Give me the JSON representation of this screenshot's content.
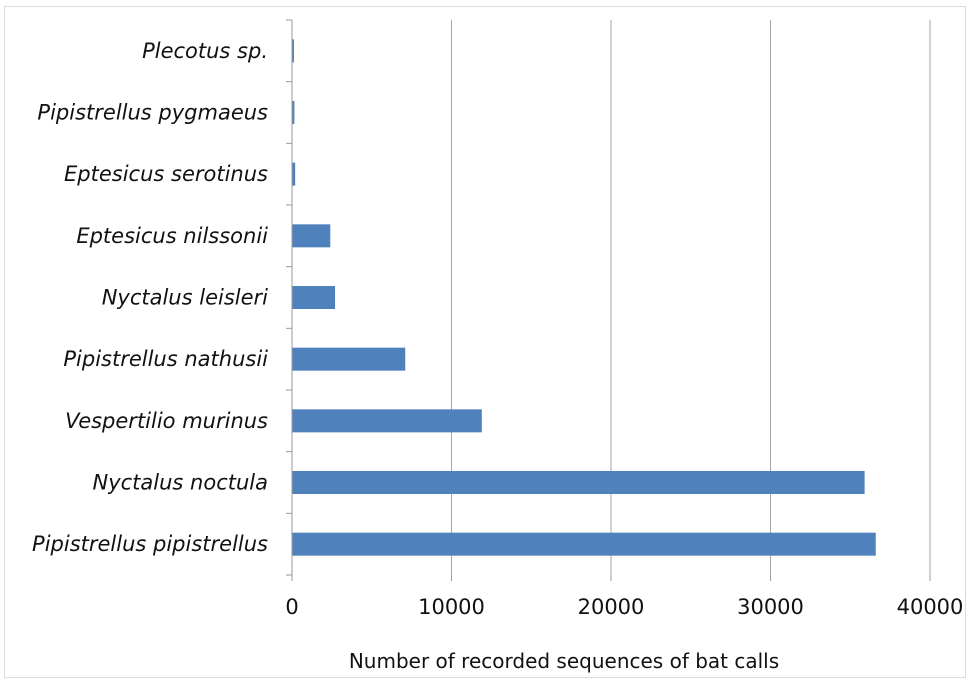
{
  "chart_data": {
    "type": "bar",
    "orientation": "horizontal",
    "categories": [
      "Pipistrellus pipistrellus",
      "Nyctalus noctula",
      "Vespertilio murinus",
      "Pipistrellus nathusii",
      "Nyctalus leisleri",
      "Eptesicus nilssonii",
      "Eptesicus serotinus",
      "Pipistrellus pygmaeus",
      "Plecotus sp."
    ],
    "values": [
      36600,
      35900,
      11900,
      7100,
      2700,
      2400,
      200,
      150,
      120
    ],
    "xlabel": "Number of recorded sequences of bat calls",
    "ylabel": "",
    "xlim": [
      0,
      40000
    ],
    "xticks": [
      "0",
      "10000",
      "20000",
      "30000",
      "40000"
    ],
    "grid": "vertical",
    "legend": "none",
    "colors": {
      "bar": "#4f81bd",
      "grid": "#a6a6a6",
      "axis": "#9a9a9a"
    }
  }
}
